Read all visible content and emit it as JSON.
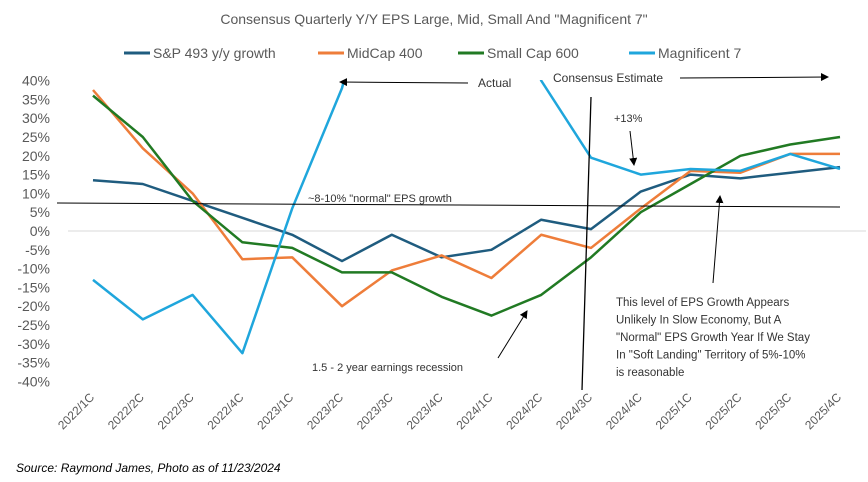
{
  "chart_data": {
    "type": "line",
    "title": "Consensus Quarterly Y/Y EPS Large, Mid, Small And \"Magnificent 7\"",
    "categories": [
      "2022/1C",
      "2022/2C",
      "2022/3C",
      "2022/4C",
      "2023/1C",
      "2023/2C",
      "2023/3C",
      "2023/4C",
      "2024/1C",
      "2024/2C",
      "2024/3C",
      "2024/4C",
      "2025/1C",
      "2025/2C",
      "2025/3C",
      "2025/4C"
    ],
    "ylim": [
      -40,
      40
    ],
    "yticks": [
      "40%",
      "35%",
      "30%",
      "25%",
      "20%",
      "15%",
      "10%",
      "5%",
      "0%",
      "-5%",
      "-10%",
      "-15%",
      "-20%",
      "-25%",
      "-30%",
      "-35%",
      "-40%"
    ],
    "ytick_values": [
      40,
      35,
      30,
      25,
      20,
      15,
      10,
      5,
      0,
      -5,
      -10,
      -15,
      -20,
      -25,
      -30,
      -35,
      -40
    ],
    "legend_position": "top",
    "grid": false,
    "series": [
      {
        "name": "S&P 493 y/y growth",
        "color": "#1f5c7f",
        "values": [
          13.5,
          12.5,
          8,
          3.5,
          -1,
          -8,
          -1,
          -7,
          -5,
          3,
          0.5,
          10.5,
          15,
          14,
          15.5,
          17
        ]
      },
      {
        "name": "MidCap 400",
        "color": "#ee7d3a",
        "values": [
          37.5,
          22,
          10,
          -7.5,
          -7,
          -20,
          -10.5,
          -6.5,
          -12.5,
          -1,
          -4.5,
          6,
          16,
          15.5,
          20.5,
          20.5
        ]
      },
      {
        "name": "Small Cap 600",
        "color": "#217a23",
        "values": [
          36,
          25,
          8,
          -3,
          -4.5,
          -11,
          -11,
          -17.5,
          -22.5,
          -17,
          -7,
          5,
          12.5,
          20,
          23,
          25
        ]
      },
      {
        "name": "Magnificent 7",
        "color": "#1fa6dc",
        "values": [
          -13,
          -23.5,
          -17,
          -32.5,
          6,
          38,
          null,
          null,
          null,
          40,
          19.5,
          15,
          16.5,
          16,
          20.5,
          16.5
        ]
      }
    ],
    "annotations": {
      "actual": "Actual",
      "estimate": "Consensus Estimate",
      "normal": "~8-10% \"normal\" EPS growth",
      "plus13": "+13%",
      "recession": "1.5 - 2 year earnings recession",
      "note": [
        "This level of EPS Growth Appears",
        "Unlikely In Slow Economy, But A",
        "\"Normal\" EPS Growth Year If We Stay",
        "In \"Soft Landing\" Territory of 5%-10%",
        "is reasonable"
      ]
    }
  },
  "source": "Source: Raymond James, Photo as of 11/23/2024"
}
